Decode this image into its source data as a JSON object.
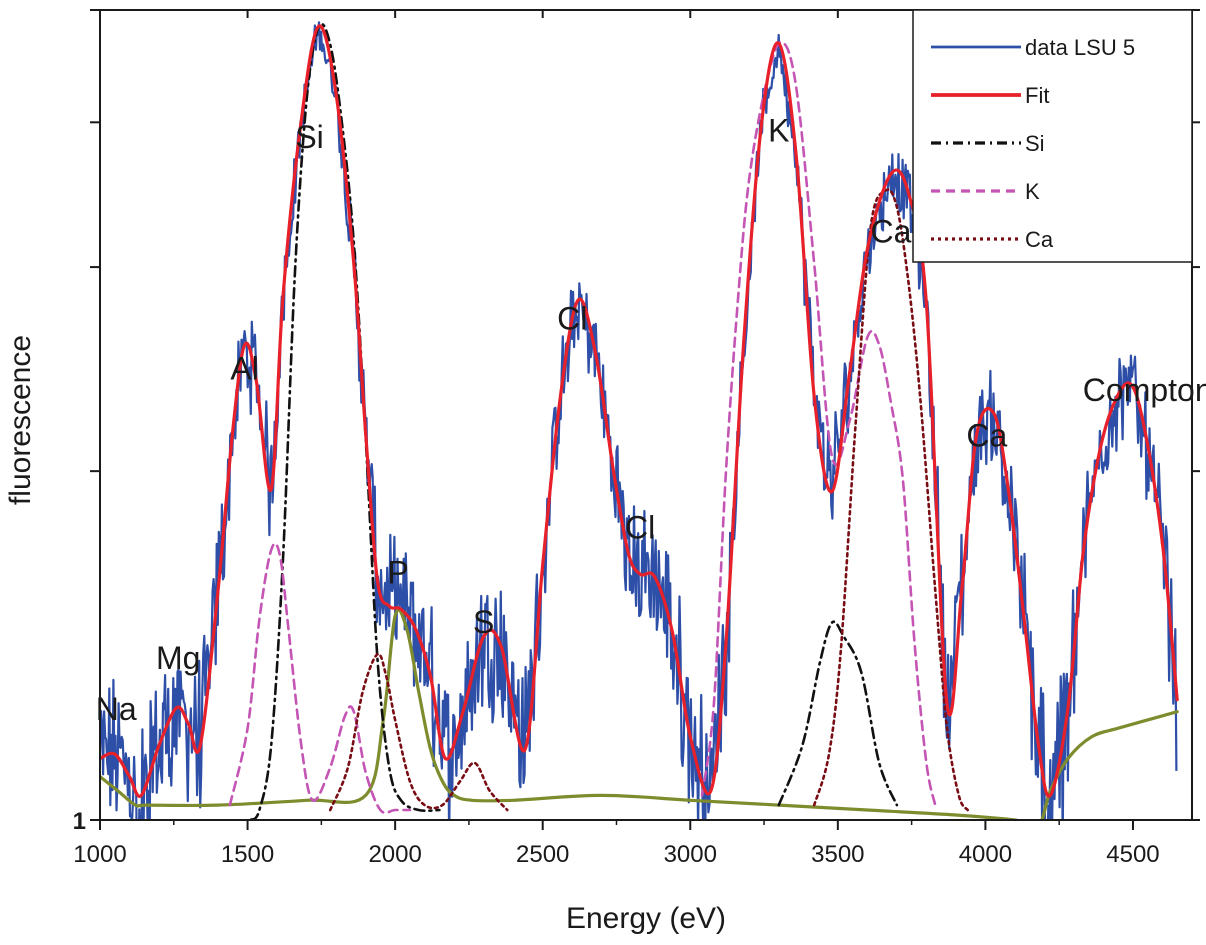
{
  "chart_data": {
    "type": "line",
    "title": "",
    "xlabel": "Energy (eV)",
    "ylabel": "fluorescence",
    "xlim": [
      1000,
      4700
    ],
    "ylim": [
      1,
      5.0
    ],
    "yscale": "log",
    "xticks": [
      1000,
      1500,
      2000,
      2500,
      3000,
      3500,
      4000,
      4500
    ],
    "xtick_labels": [
      "1000",
      "1500",
      "2000",
      "2500",
      "3000",
      "3500",
      "4000",
      "4500"
    ],
    "ytick_labels": [
      {
        "value": 1,
        "label": "1"
      }
    ],
    "grid": false,
    "legend": {
      "position": "top-right",
      "entries": [
        {
          "label": "data LSU 5",
          "series": "data",
          "color": "#2e4fa8",
          "style": "solid"
        },
        {
          "label": "Fit",
          "series": "fit",
          "color": "#e8202a",
          "style": "solid"
        },
        {
          "label": "Si",
          "series": "si",
          "color": "#111111",
          "style": "dashdot"
        },
        {
          "label": "K",
          "series": "k",
          "color": "#c455b4",
          "style": "dashed"
        },
        {
          "label": "Ca",
          "series": "ca",
          "color": "#7a0c14",
          "style": "dotted"
        }
      ]
    },
    "annotations": [
      {
        "text": "Na",
        "x": 1055,
        "y": 1.22
      },
      {
        "text": "Mg",
        "x": 1265,
        "y": 1.35
      },
      {
        "text": "Al",
        "x": 1490,
        "y": 2.4
      },
      {
        "text": "Si",
        "x": 1710,
        "y": 3.8
      },
      {
        "text": "P",
        "x": 2010,
        "y": 1.6
      },
      {
        "text": "S",
        "x": 2300,
        "y": 1.45
      },
      {
        "text": "Cl",
        "x": 2600,
        "y": 2.65
      },
      {
        "text": "Cl",
        "x": 2830,
        "y": 1.75
      },
      {
        "text": "K",
        "x": 3300,
        "y": 3.85
      },
      {
        "text": "Ca",
        "x": 3680,
        "y": 3.15
      },
      {
        "text": "Ca",
        "x": 4005,
        "y": 2.1
      },
      {
        "text": "Compton",
        "x": 4550,
        "y": 2.3
      }
    ],
    "series": [
      {
        "name": "Fit",
        "id": "fit",
        "x": [
          1000,
          1050,
          1100,
          1140,
          1200,
          1260,
          1300,
          1340,
          1400,
          1450,
          1490,
          1530,
          1580,
          1620,
          1680,
          1740,
          1800,
          1860,
          1900,
          1940,
          1980,
          2020,
          2070,
          2120,
          2170,
          2230,
          2300,
          2360,
          2440,
          2500,
          2560,
          2620,
          2680,
          2740,
          2790,
          2830,
          2880,
          2940,
          3000,
          3070,
          3120,
          3180,
          3240,
          3300,
          3360,
          3420,
          3480,
          3540,
          3600,
          3680,
          3740,
          3800,
          3870,
          3920,
          3970,
          4030,
          4080,
          4130,
          4180,
          4220,
          4280,
          4330,
          4380,
          4430,
          4490,
          4540,
          4600,
          4650
        ],
        "y": [
          1.13,
          1.14,
          1.09,
          1.05,
          1.16,
          1.25,
          1.21,
          1.16,
          1.58,
          2.17,
          2.57,
          2.39,
          1.93,
          2.83,
          3.98,
          4.84,
          4.23,
          3.02,
          2.16,
          1.61,
          1.53,
          1.52,
          1.46,
          1.33,
          1.13,
          1.24,
          1.44,
          1.41,
          1.15,
          1.66,
          2.32,
          2.81,
          2.52,
          2.0,
          1.7,
          1.63,
          1.62,
          1.45,
          1.18,
          1.06,
          1.41,
          2.56,
          3.96,
          4.68,
          3.72,
          2.32,
          1.92,
          2.43,
          3.11,
          3.61,
          3.47,
          2.79,
          1.26,
          1.58,
          2.15,
          2.24,
          1.91,
          1.5,
          1.16,
          1.05,
          1.25,
          1.69,
          2.04,
          2.27,
          2.38,
          2.17,
          1.73,
          1.27
        ]
      },
      {
        "name": "Si",
        "id": "si",
        "x": [
          1510,
          1540,
          1580,
          1620,
          1660,
          1700,
          1740,
          1780,
          1820,
          1860,
          1900,
          1940,
          1980,
          2020,
          2080,
          2150,
          3300,
          3380,
          3440,
          3480,
          3520,
          3580,
          3640,
          3700
        ],
        "y": [
          1.0,
          1.02,
          1.16,
          1.68,
          2.95,
          4.18,
          4.83,
          4.67,
          3.99,
          3.15,
          2.14,
          1.38,
          1.11,
          1.04,
          1.02,
          1.02,
          1.03,
          1.16,
          1.37,
          1.48,
          1.44,
          1.34,
          1.12,
          1.03
        ],
        "y_comment": ""
      },
      {
        "name": "K",
        "id": "k",
        "x": [
          1440,
          1500,
          1540,
          1580,
          1610,
          1640,
          1680,
          1720,
          1780,
          1830,
          1860,
          1900,
          1950,
          2000,
          2050,
          3040,
          3080,
          3120,
          3160,
          3200,
          3260,
          3310,
          3360,
          3420,
          3480,
          3540,
          3600,
          3640,
          3680,
          3720,
          3760,
          3800,
          3830
        ],
        "y": [
          1.03,
          1.2,
          1.49,
          1.71,
          1.69,
          1.45,
          1.17,
          1.04,
          1.11,
          1.23,
          1.24,
          1.1,
          1.02,
          1.02,
          1.02,
          1.05,
          1.26,
          1.98,
          2.78,
          3.58,
          4.35,
          4.69,
          4.27,
          3.02,
          2.06,
          2.21,
          2.61,
          2.57,
          2.29,
          1.97,
          1.42,
          1.12,
          1.03
        ]
      },
      {
        "name": "Ca",
        "id": "ca",
        "x": [
          1780,
          1840,
          1890,
          1940,
          1970,
          2000,
          2050,
          2100,
          2160,
          2220,
          2270,
          2320,
          2380,
          3420,
          3470,
          3510,
          3560,
          3610,
          3660,
          3700,
          3740,
          3780,
          3830,
          3870,
          3910,
          3940
        ],
        "y": [
          1.02,
          1.11,
          1.29,
          1.39,
          1.33,
          1.22,
          1.08,
          1.03,
          1.03,
          1.08,
          1.12,
          1.06,
          1.02,
          1.03,
          1.14,
          1.4,
          2.19,
          3.23,
          3.49,
          3.38,
          2.9,
          2.3,
          1.58,
          1.2,
          1.05,
          1.02
        ]
      },
      {
        "name": "",
        "id": "background",
        "x": [
          1000,
          1060,
          1120,
          1160,
          1400,
          1700,
          1900,
          1960,
          2000,
          2040,
          2080,
          2120,
          2160,
          2200,
          2260,
          2400,
          2700,
          3000,
          3300,
          3600,
          3900,
          4100,
          4180,
          4220,
          4280,
          4360,
          4450,
          4550,
          4650
        ],
        "y": [
          1.09,
          1.06,
          1.03,
          1.03,
          1.03,
          1.04,
          1.05,
          1.22,
          1.5,
          1.46,
          1.29,
          1.15,
          1.08,
          1.05,
          1.04,
          1.04,
          1.05,
          1.04,
          1.03,
          1.02,
          1.01,
          1.0,
          0.99,
          1.06,
          1.13,
          1.18,
          1.2,
          1.22,
          1.24
        ]
      }
    ]
  }
}
